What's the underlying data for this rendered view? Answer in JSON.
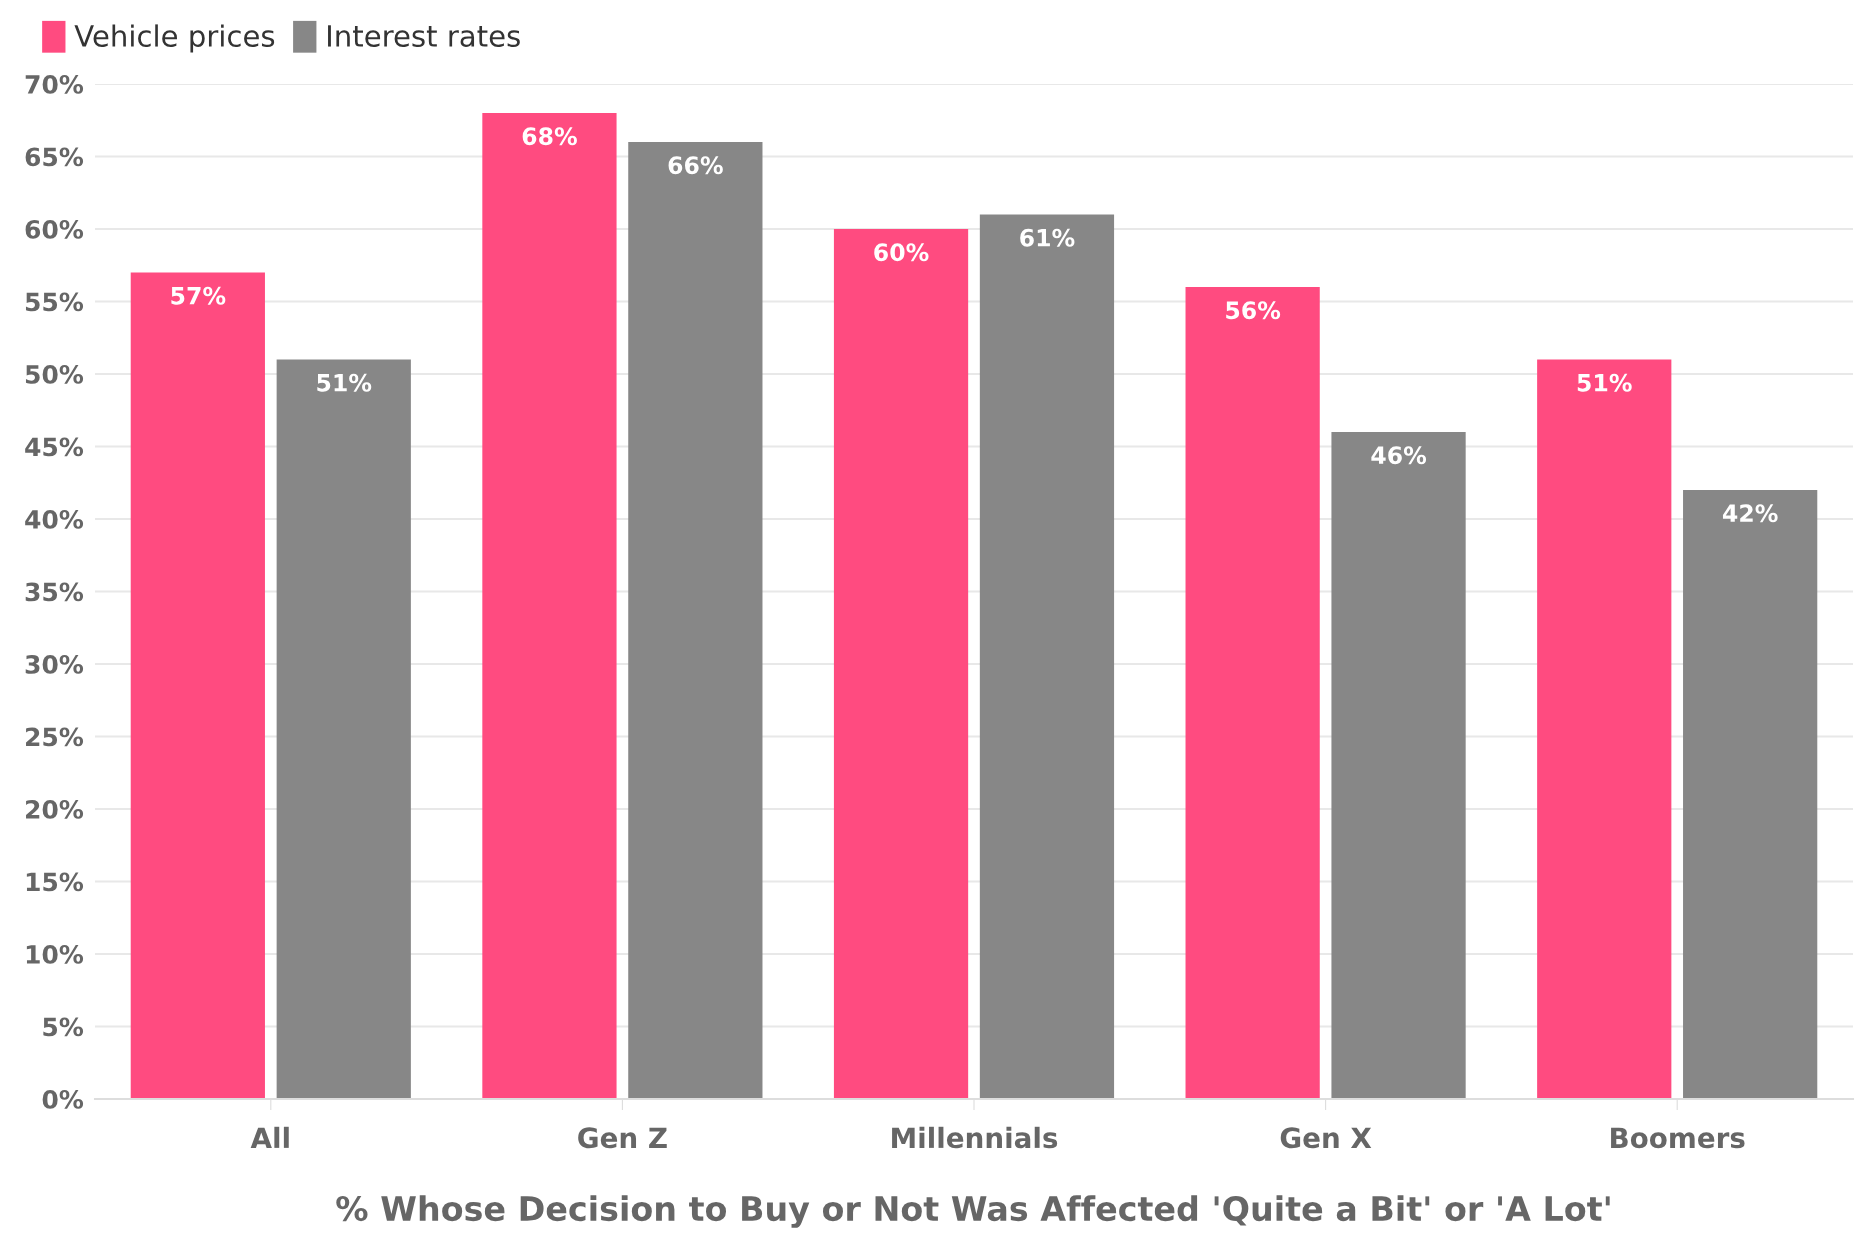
{
  "chart_data": {
    "type": "bar",
    "xlabel": "% Whose Decision to Buy or Not Was Affected 'Quite a Bit' or 'A Lot'",
    "categories": [
      "All",
      "Gen Z",
      "Millennials",
      "Gen X",
      "Boomers"
    ],
    "series": [
      {
        "name": "Vehicle prices",
        "color": "#ff4b80",
        "values": [
          57,
          68,
          60,
          56,
          51
        ],
        "value_labels": [
          "57%",
          "68%",
          "60%",
          "56%",
          "51%"
        ]
      },
      {
        "name": "Interest rates",
        "color": "#878787",
        "values": [
          51,
          66,
          61,
          46,
          42
        ],
        "value_labels": [
          "51%",
          "66%",
          "61%",
          "46%",
          "42%"
        ]
      }
    ],
    "ylim": [
      0,
      70
    ],
    "yticks": [
      {
        "value": 0,
        "label": "0%"
      },
      {
        "value": 5,
        "label": "5%"
      },
      {
        "value": 10,
        "label": "10%"
      },
      {
        "value": 15,
        "label": "15%"
      },
      {
        "value": 20,
        "label": "20%"
      },
      {
        "value": 25,
        "label": "25%"
      },
      {
        "value": 30,
        "label": "30%"
      },
      {
        "value": 35,
        "label": "35%"
      },
      {
        "value": 40,
        "label": "40%"
      },
      {
        "value": 45,
        "label": "45%"
      },
      {
        "value": 50,
        "label": "50%"
      },
      {
        "value": 55,
        "label": "55%"
      },
      {
        "value": 60,
        "label": "60%"
      },
      {
        "value": 65,
        "label": "65%"
      },
      {
        "value": 70,
        "label": "70%"
      }
    ],
    "grid": "y",
    "legend": "top left"
  }
}
